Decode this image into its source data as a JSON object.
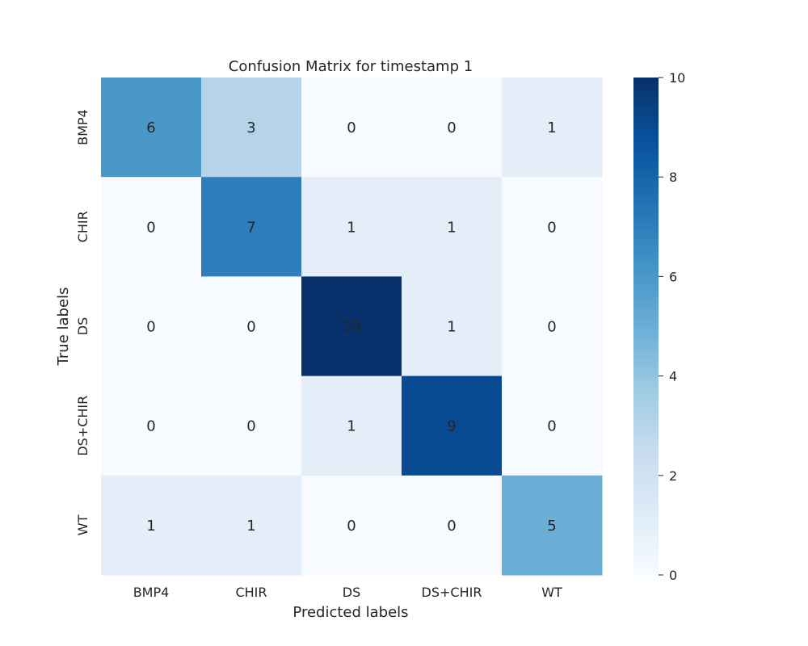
{
  "chart_data": {
    "type": "heatmap",
    "title": "Confusion Matrix for timestamp 1",
    "xlabel": "Predicted labels",
    "ylabel": "True labels",
    "x_categories": [
      "BMP4",
      "CHIR",
      "DS",
      "DS+CHIR",
      "WT"
    ],
    "y_categories": [
      "BMP4",
      "CHIR",
      "DS",
      "DS+CHIR",
      "WT"
    ],
    "values": [
      [
        6,
        3,
        0,
        0,
        1
      ],
      [
        0,
        7,
        1,
        1,
        0
      ],
      [
        0,
        0,
        10,
        1,
        0
      ],
      [
        0,
        0,
        1,
        9,
        0
      ],
      [
        1,
        1,
        0,
        0,
        5
      ]
    ],
    "colorbar": {
      "min": 0,
      "max": 10,
      "ticks": [
        0,
        2,
        4,
        6,
        8,
        10
      ]
    },
    "colormap": "Blues",
    "grid": false,
    "legend": "colorbar-right"
  }
}
